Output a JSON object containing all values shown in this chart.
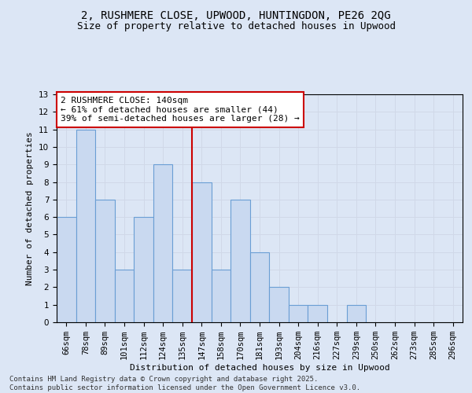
{
  "title": "2, RUSHMERE CLOSE, UPWOOD, HUNTINGDON, PE26 2QG",
  "subtitle": "Size of property relative to detached houses in Upwood",
  "xlabel": "Distribution of detached houses by size in Upwood",
  "ylabel": "Number of detached properties",
  "categories": [
    "66sqm",
    "78sqm",
    "89sqm",
    "101sqm",
    "112sqm",
    "124sqm",
    "135sqm",
    "147sqm",
    "158sqm",
    "170sqm",
    "181sqm",
    "193sqm",
    "204sqm",
    "216sqm",
    "227sqm",
    "239sqm",
    "250sqm",
    "262sqm",
    "273sqm",
    "285sqm",
    "296sqm"
  ],
  "values": [
    6,
    11,
    7,
    3,
    6,
    9,
    3,
    8,
    3,
    7,
    4,
    2,
    1,
    1,
    0,
    1,
    0,
    0,
    0,
    0,
    0
  ],
  "bar_color": "#c9d9f0",
  "bar_edge_color": "#6a9ed4",
  "annotation_title": "2 RUSHMERE CLOSE: 140sqm",
  "annotation_line1": "← 61% of detached houses are smaller (44)",
  "annotation_line2": "39% of semi-detached houses are larger (28) →",
  "annotation_box_color": "#ffffff",
  "annotation_box_edge": "#cc0000",
  "vline_color": "#cc0000",
  "vline_x": 6.5,
  "ylim": [
    0,
    13
  ],
  "yticks": [
    0,
    1,
    2,
    3,
    4,
    5,
    6,
    7,
    8,
    9,
    10,
    11,
    12,
    13
  ],
  "grid_color": "#d0d8e8",
  "background_color": "#dce6f5",
  "footer_line1": "Contains HM Land Registry data © Crown copyright and database right 2025.",
  "footer_line2": "Contains public sector information licensed under the Open Government Licence v3.0.",
  "title_fontsize": 10,
  "subtitle_fontsize": 9,
  "axis_label_fontsize": 8,
  "tick_fontsize": 7.5,
  "annotation_fontsize": 8,
  "footer_fontsize": 6.5
}
